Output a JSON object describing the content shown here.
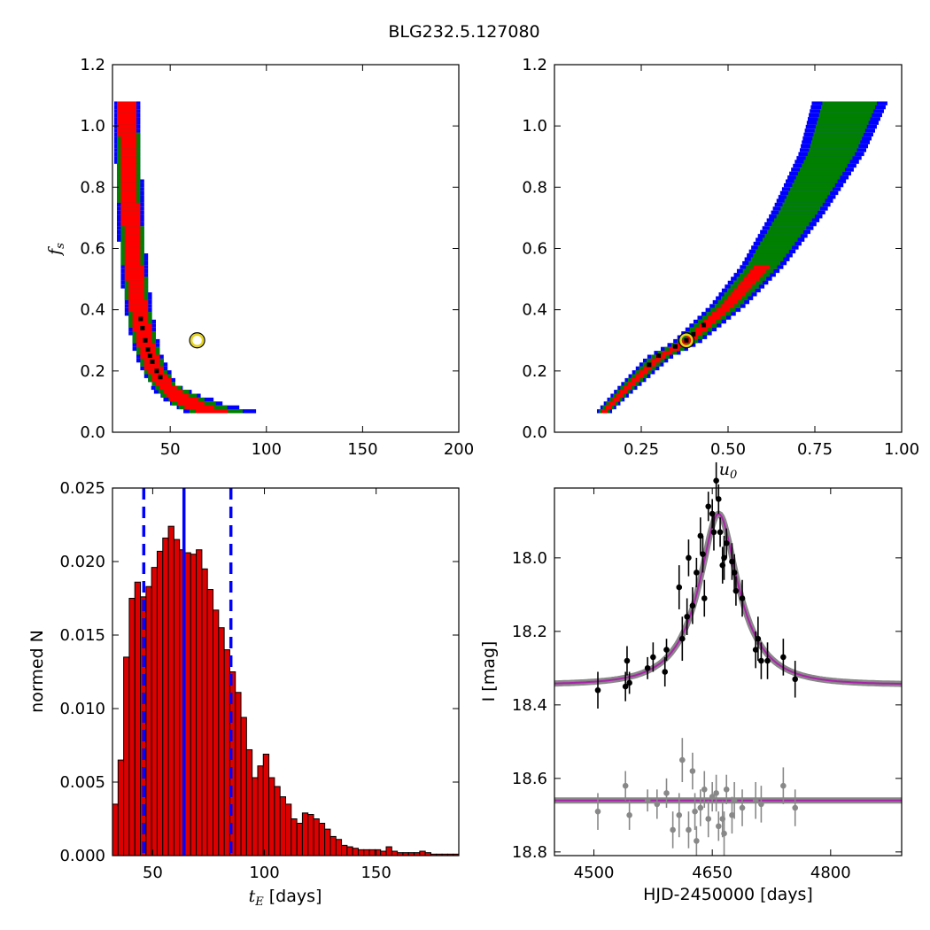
{
  "figure": {
    "title": "BLG232.5.127080"
  },
  "colors": {
    "conf1": "#ff0000",
    "conf2": "#008000",
    "conf3": "#0000ff",
    "best": "#000000",
    "marker": "#e6d41a",
    "hist": "#dd0000",
    "model": "#aa22aa",
    "model_band": "#888888",
    "data_event": "#000000",
    "data_resid": "#888888",
    "vline": "#0000ff"
  },
  "chart_data": [
    {
      "id": "tE_fs",
      "type": "heatmap",
      "xlabel": "",
      "ylabel": "f_s",
      "xlim": [
        20,
        200
      ],
      "ylim": [
        0.0,
        1.2
      ],
      "xticks": [
        "50",
        "100",
        "150",
        "200"
      ],
      "yticks": [
        "0.0",
        "0.2",
        "0.4",
        "0.6",
        "0.8",
        "1.0",
        "1.2"
      ],
      "curve": {
        "form": "fs = a*(tE - c)^-p",
        "a": 8.2,
        "c": 22,
        "p": 1.22,
        "fs_range": [
          0.07,
          1.08
        ]
      },
      "best_fit": {
        "x": 64,
        "y": 0.3
      },
      "levels": [
        "1-sigma",
        "2-sigma",
        "3-sigma"
      ]
    },
    {
      "id": "u0_fs",
      "type": "heatmap",
      "xlabel": "u_0",
      "ylabel": "",
      "xlim": [
        0.0,
        1.0
      ],
      "ylim": [
        0.0,
        1.2
      ],
      "xticks": [
        "0.25",
        "0.50",
        "0.75",
        "1.00"
      ],
      "yticks": [
        "0.0",
        "0.2",
        "0.4",
        "0.6",
        "0.8",
        "1.0",
        "1.2"
      ],
      "curve": {
        "points": [
          [
            0.14,
            0.07
          ],
          [
            0.2,
            0.14
          ],
          [
            0.3,
            0.25
          ],
          [
            0.38,
            0.3
          ],
          [
            0.5,
            0.42
          ],
          [
            0.6,
            0.55
          ],
          [
            0.7,
            0.72
          ],
          [
            0.8,
            0.92
          ],
          [
            0.85,
            1.08
          ]
        ]
      },
      "best_fit": {
        "x": 0.38,
        "y": 0.3
      },
      "levels": [
        "1-sigma",
        "2-sigma",
        "3-sigma"
      ]
    },
    {
      "id": "tE_hist",
      "type": "bar",
      "xlabel": "t_E [days]",
      "xlabel_sub": "E",
      "xlabel_unit": " [days]",
      "ylabel": "normed N",
      "xlim": [
        32,
        187
      ],
      "ylim": [
        0.0,
        0.025
      ],
      "xticks": [
        "50",
        "100",
        "150"
      ],
      "yticks": [
        "0.000",
        "0.005",
        "0.010",
        "0.015",
        "0.020",
        "0.025"
      ],
      "bin_start": 32,
      "bin_width": 2.5,
      "values": [
        0.0035,
        0.0065,
        0.0135,
        0.0175,
        0.0186,
        0.0176,
        0.0183,
        0.0196,
        0.0207,
        0.0216,
        0.0224,
        0.0215,
        0.0208,
        0.0206,
        0.0205,
        0.0208,
        0.0195,
        0.0181,
        0.0167,
        0.0155,
        0.014,
        0.0125,
        0.0111,
        0.0094,
        0.0072,
        0.0053,
        0.0061,
        0.0069,
        0.0053,
        0.0047,
        0.004,
        0.0035,
        0.0025,
        0.0022,
        0.0029,
        0.0028,
        0.0025,
        0.0022,
        0.0018,
        0.0013,
        0.0011,
        0.0007,
        0.0006,
        0.0005,
        0.0004,
        0.0004,
        0.0004,
        0.0004,
        0.0003,
        0.0006,
        0.0003,
        0.0002,
        0.0002,
        0.0002,
        0.0002,
        0.0003,
        0.0002,
        0.0001,
        0.0001,
        0.0001,
        0.0001,
        0.0001
      ],
      "median": 64,
      "lower": 46,
      "upper": 85
    },
    {
      "id": "lightcurve",
      "type": "scatter",
      "xlabel": "HJD-2450000 [days]",
      "ylabel": "I [mag]",
      "xlim": [
        4450,
        4890
      ],
      "ylim": [
        18.81,
        17.81
      ],
      "xticks": [
        "4500",
        "4650",
        "4800"
      ],
      "yticks": [
        "18.0",
        "18.2",
        "18.4",
        "18.6",
        "18.8"
      ],
      "model": {
        "baseline": 18.345,
        "peak_mag": 17.88,
        "t0": 4658,
        "tE": 64,
        "u0": 0.38
      },
      "residual_offset": 18.66,
      "event_points": [
        [
          4505,
          18.36,
          0.05
        ],
        [
          4540,
          18.35,
          0.04
        ],
        [
          4542,
          18.28,
          0.04
        ],
        [
          4545,
          18.34,
          0.03
        ],
        [
          4568,
          18.3,
          0.03
        ],
        [
          4575,
          18.27,
          0.04
        ],
        [
          4590,
          18.31,
          0.04
        ],
        [
          4592,
          18.25,
          0.03
        ],
        [
          4608,
          18.08,
          0.06
        ],
        [
          4612,
          18.22,
          0.06
        ],
        [
          4618,
          18.16,
          0.05
        ],
        [
          4620,
          18.0,
          0.05
        ],
        [
          4625,
          18.13,
          0.05
        ],
        [
          4630,
          18.04,
          0.04
        ],
        [
          4635,
          17.94,
          0.05
        ],
        [
          4638,
          17.99,
          0.05
        ],
        [
          4640,
          18.11,
          0.05
        ],
        [
          4645,
          17.86,
          0.04
        ],
        [
          4650,
          17.88,
          0.04
        ],
        [
          4652,
          17.93,
          0.05
        ],
        [
          4655,
          17.79,
          0.05
        ],
        [
          4658,
          17.84,
          0.04
        ],
        [
          4660,
          17.93,
          0.04
        ],
        [
          4663,
          18.02,
          0.05
        ],
        [
          4665,
          18.0,
          0.06
        ],
        [
          4668,
          17.96,
          0.04
        ],
        [
          4675,
          18.01,
          0.05
        ],
        [
          4678,
          18.04,
          0.05
        ],
        [
          4680,
          18.09,
          0.04
        ],
        [
          4688,
          18.11,
          0.05
        ],
        [
          4705,
          18.25,
          0.05
        ],
        [
          4708,
          18.22,
          0.06
        ],
        [
          4712,
          18.28,
          0.05
        ],
        [
          4720,
          18.28,
          0.05
        ],
        [
          4740,
          18.27,
          0.05
        ],
        [
          4755,
          18.33,
          0.05
        ]
      ],
      "residual_points": [
        [
          4505,
          18.69,
          0.05
        ],
        [
          4540,
          18.62,
          0.04
        ],
        [
          4545,
          18.7,
          0.04
        ],
        [
          4568,
          18.66,
          0.03
        ],
        [
          4580,
          18.67,
          0.04
        ],
        [
          4592,
          18.64,
          0.04
        ],
        [
          4600,
          18.74,
          0.05
        ],
        [
          4608,
          18.7,
          0.06
        ],
        [
          4612,
          18.55,
          0.06
        ],
        [
          4620,
          18.74,
          0.05
        ],
        [
          4625,
          18.58,
          0.05
        ],
        [
          4628,
          18.69,
          0.05
        ],
        [
          4630,
          18.77,
          0.04
        ],
        [
          4635,
          18.68,
          0.05
        ],
        [
          4640,
          18.63,
          0.05
        ],
        [
          4645,
          18.71,
          0.05
        ],
        [
          4650,
          18.65,
          0.04
        ],
        [
          4655,
          18.64,
          0.05
        ],
        [
          4658,
          18.73,
          0.04
        ],
        [
          4663,
          18.71,
          0.05
        ],
        [
          4665,
          18.75,
          0.06
        ],
        [
          4668,
          18.63,
          0.04
        ],
        [
          4675,
          18.7,
          0.05
        ],
        [
          4678,
          18.66,
          0.05
        ],
        [
          4688,
          18.68,
          0.05
        ],
        [
          4705,
          18.66,
          0.05
        ],
        [
          4712,
          18.67,
          0.05
        ],
        [
          4740,
          18.62,
          0.05
        ],
        [
          4755,
          18.68,
          0.05
        ]
      ]
    }
  ]
}
